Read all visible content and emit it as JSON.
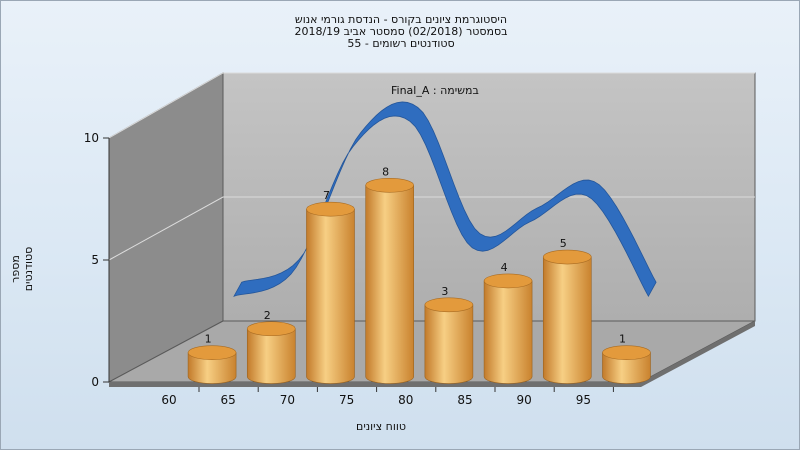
{
  "title_lines": [
    "היסטוגרמת ציונים בקורס - הנדסת גורמי אנוש",
    "בסמסטר  (02/2018)  סמסטר אביב 2018/19",
    "סטודנטים רשומים - 55"
  ],
  "chart_data": {
    "type": "bar",
    "categories": [
      "60",
      "65",
      "70",
      "75",
      "80",
      "85",
      "90",
      "95"
    ],
    "values": [
      1,
      2,
      7,
      8,
      3,
      4,
      5,
      1
    ],
    "data_labels": [
      "1",
      "2",
      "7",
      "8",
      "3",
      "4",
      "5",
      "1"
    ],
    "xlabel": "טווח ציונים",
    "ylabel": "מספר סטודנטים",
    "ylim": [
      0,
      10
    ],
    "yticks": [
      "0",
      "5",
      "10"
    ],
    "annotation": "Final_A : במשימה",
    "grid": true,
    "three_d": true,
    "colors": {
      "bar": "#e5a34a",
      "curve": "#2f6dbf",
      "back_wall": "#b9b9b9",
      "left_wall": "#8c8c8c",
      "floor": "#a9a9a9"
    }
  }
}
